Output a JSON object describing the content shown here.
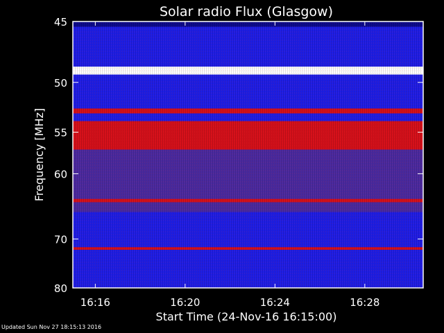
{
  "chart_data": {
    "type": "heatmap",
    "title": "Solar radio Flux (Glasgow)",
    "ylabel": "Frequency [MHz]",
    "xlabel": "Start Time (24-Nov-16 16:15:00)",
    "x_ticks": [
      "16:16",
      "16:20",
      "16:24",
      "16:28"
    ],
    "y_ticks": [
      "45",
      "50",
      "55",
      "60",
      "70",
      "80"
    ],
    "xlim_minutes": [
      0,
      15.6
    ],
    "x_tick_minutes": [
      1,
      5,
      9,
      13
    ],
    "ylim": [
      45,
      80
    ],
    "y_tick_values": [
      45,
      50,
      55,
      60,
      70,
      80
    ],
    "y_scale": "reciprocal",
    "bands": [
      {
        "freq": [
          44.8,
          45.4
        ],
        "level": "dark-blue"
      },
      {
        "freq": [
          45.4,
          48.6
        ],
        "level": "blue"
      },
      {
        "freq": [
          48.6,
          49.3
        ],
        "level": "white"
      },
      {
        "freq": [
          49.3,
          52.5
        ],
        "level": "blue"
      },
      {
        "freq": [
          52.5,
          53.0
        ],
        "level": "red"
      },
      {
        "freq": [
          53.0,
          53.8
        ],
        "level": "blue"
      },
      {
        "freq": [
          53.8,
          57.0
        ],
        "level": "red"
      },
      {
        "freq": [
          57.0,
          63.5
        ],
        "level": "purple"
      },
      {
        "freq": [
          63.5,
          64.0
        ],
        "level": "red"
      },
      {
        "freq": [
          64.0,
          65.5
        ],
        "level": "purple"
      },
      {
        "freq": [
          65.5,
          71.5
        ],
        "level": "blue"
      },
      {
        "freq": [
          71.5,
          72.0
        ],
        "level": "red"
      },
      {
        "freq": [
          72.0,
          80.0
        ],
        "level": "blue"
      }
    ],
    "colors": {
      "dark-blue": "#0a0a8c",
      "blue": "#1e1ee6",
      "purple": "#4a2aa0",
      "red": "#d4101a",
      "white": "#ffffff",
      "frame": "#ffffff",
      "background": "#000000"
    }
  },
  "footer": {
    "updated": "Updated Sun Nov 27 18:15:13 2016"
  }
}
